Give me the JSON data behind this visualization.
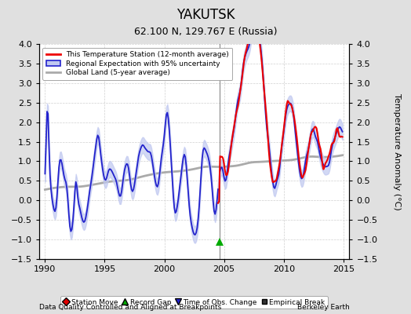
{
  "title": "YAKUTSK",
  "subtitle": "62.100 N, 129.767 E (Russia)",
  "xlabel_left": "Data Quality Controlled and Aligned at Breakpoints",
  "xlabel_right": "Berkeley Earth",
  "ylabel": "Temperature Anomaly (°C)",
  "xlim": [
    1989.5,
    2015.5
  ],
  "ylim": [
    -1.5,
    4.0
  ],
  "yticks": [
    -1.5,
    -1.0,
    -0.5,
    0.0,
    0.5,
    1.0,
    1.5,
    2.0,
    2.5,
    3.0,
    3.5,
    4.0
  ],
  "xticks": [
    1990,
    1995,
    2000,
    2005,
    2010,
    2015
  ],
  "station_color": "#EE0000",
  "regional_color": "#2222CC",
  "regional_fill_color": "#C0C8F0",
  "global_color": "#AAAAAA",
  "vertical_line_x": 2004.6,
  "record_gap_x": 2004.6,
  "record_gap_y": -1.05,
  "background_color": "#E0E0E0",
  "plot_background": "#FFFFFF",
  "grid_color": "#D0D0D0",
  "title_fontsize": 12,
  "subtitle_fontsize": 9,
  "tick_fontsize": 8
}
